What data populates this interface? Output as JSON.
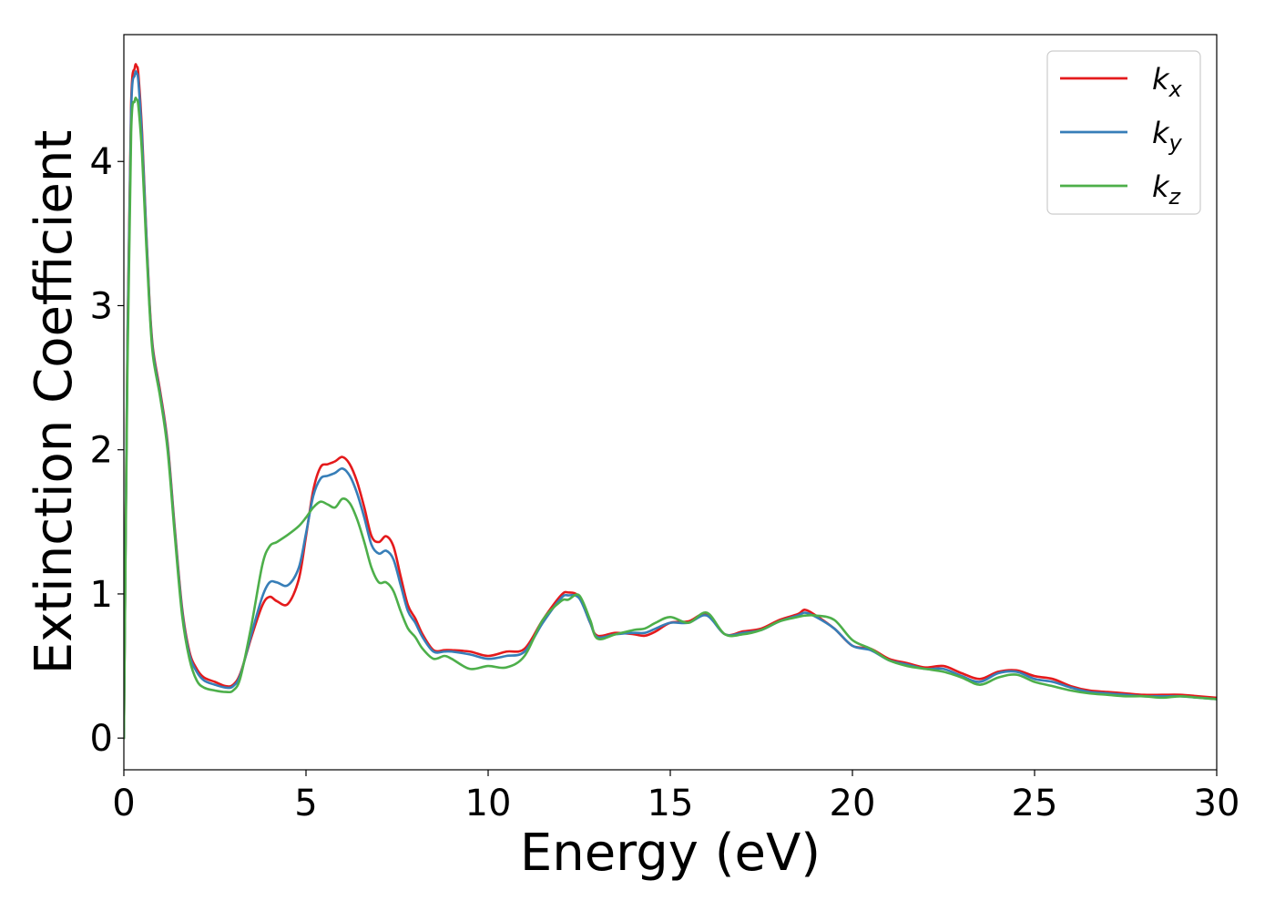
{
  "chart_data": {
    "type": "line",
    "title": "",
    "xlabel": "Energy (eV)",
    "ylabel": "Extinction Coefficient",
    "xlim": [
      0,
      30
    ],
    "ylim": [
      -0.22,
      4.88
    ],
    "xticks": [
      0,
      5,
      10,
      15,
      20,
      25,
      30
    ],
    "yticks": [
      0,
      1,
      2,
      3,
      4
    ],
    "grid": false,
    "legend_position": "top-right",
    "series": [
      {
        "name": "x",
        "legend_base": "k",
        "legend_sub": "x",
        "color": "#e41a1c",
        "x": [
          0,
          0.1,
          0.2,
          0.3,
          0.35,
          0.4,
          0.5,
          0.6,
          0.7,
          0.8,
          1.0,
          1.2,
          1.4,
          1.6,
          1.8,
          2.0,
          2.2,
          2.5,
          2.8,
          3.0,
          3.2,
          3.5,
          3.8,
          4.0,
          4.2,
          4.5,
          4.8,
          5.0,
          5.2,
          5.4,
          5.6,
          5.8,
          6.0,
          6.2,
          6.4,
          6.6,
          6.8,
          7.0,
          7.2,
          7.4,
          7.6,
          7.8,
          8.0,
          8.2,
          8.5,
          8.8,
          9.0,
          9.5,
          10.0,
          10.5,
          11.0,
          11.5,
          12.0,
          12.2,
          12.5,
          12.8,
          13.0,
          13.5,
          14.0,
          14.3,
          14.6,
          15.0,
          15.5,
          16.0,
          16.5,
          17.0,
          17.5,
          18.0,
          18.5,
          18.7,
          19.0,
          19.5,
          20.0,
          20.5,
          21.0,
          21.5,
          22.0,
          22.5,
          23.0,
          23.5,
          24.0,
          24.5,
          25.0,
          25.5,
          26.0,
          26.5,
          27.0,
          27.5,
          28.0,
          28.5,
          29.0,
          29.5,
          30.0
        ],
        "y": [
          0.0,
          2.8,
          4.4,
          4.65,
          4.66,
          4.6,
          4.2,
          3.6,
          3.05,
          2.7,
          2.4,
          2.05,
          1.45,
          0.9,
          0.6,
          0.48,
          0.42,
          0.39,
          0.36,
          0.37,
          0.45,
          0.7,
          0.92,
          0.98,
          0.95,
          0.93,
          1.1,
          1.4,
          1.72,
          1.88,
          1.9,
          1.92,
          1.95,
          1.9,
          1.78,
          1.6,
          1.4,
          1.36,
          1.4,
          1.33,
          1.12,
          0.92,
          0.83,
          0.72,
          0.61,
          0.61,
          0.61,
          0.6,
          0.57,
          0.6,
          0.62,
          0.82,
          0.99,
          1.01,
          0.98,
          0.8,
          0.71,
          0.73,
          0.72,
          0.71,
          0.74,
          0.8,
          0.81,
          0.86,
          0.72,
          0.74,
          0.76,
          0.82,
          0.86,
          0.89,
          0.85,
          0.76,
          0.64,
          0.62,
          0.55,
          0.52,
          0.49,
          0.5,
          0.45,
          0.41,
          0.46,
          0.47,
          0.43,
          0.41,
          0.36,
          0.33,
          0.32,
          0.31,
          0.3,
          0.3,
          0.3,
          0.29,
          0.28
        ]
      },
      {
        "name": "y",
        "legend_base": "k",
        "legend_sub": "y",
        "color": "#377eb8",
        "x": [
          0,
          0.1,
          0.2,
          0.3,
          0.35,
          0.4,
          0.5,
          0.6,
          0.7,
          0.8,
          1.0,
          1.2,
          1.4,
          1.6,
          1.8,
          2.0,
          2.2,
          2.5,
          2.8,
          3.0,
          3.2,
          3.5,
          3.8,
          4.0,
          4.2,
          4.5,
          4.8,
          5.0,
          5.2,
          5.4,
          5.6,
          5.8,
          6.0,
          6.2,
          6.4,
          6.6,
          6.8,
          7.0,
          7.2,
          7.4,
          7.6,
          7.8,
          8.0,
          8.2,
          8.5,
          8.8,
          9.0,
          9.5,
          10.0,
          10.5,
          11.0,
          11.5,
          12.0,
          12.2,
          12.5,
          12.8,
          13.0,
          13.5,
          14.0,
          14.3,
          14.6,
          15.0,
          15.5,
          16.0,
          16.5,
          17.0,
          17.5,
          18.0,
          18.5,
          18.7,
          19.0,
          19.5,
          20.0,
          20.5,
          21.0,
          21.5,
          22.0,
          22.5,
          23.0,
          23.5,
          24.0,
          24.5,
          25.0,
          25.5,
          26.0,
          26.5,
          27.0,
          27.5,
          28.0,
          28.5,
          29.0,
          29.5,
          30.0
        ],
        "y": [
          0.0,
          2.75,
          4.35,
          4.6,
          4.61,
          4.55,
          4.15,
          3.58,
          3.03,
          2.68,
          2.38,
          2.03,
          1.43,
          0.88,
          0.58,
          0.46,
          0.4,
          0.37,
          0.35,
          0.36,
          0.44,
          0.72,
          0.98,
          1.08,
          1.08,
          1.06,
          1.18,
          1.42,
          1.68,
          1.8,
          1.82,
          1.84,
          1.87,
          1.82,
          1.7,
          1.53,
          1.34,
          1.28,
          1.3,
          1.24,
          1.06,
          0.88,
          0.8,
          0.7,
          0.6,
          0.6,
          0.6,
          0.58,
          0.55,
          0.57,
          0.6,
          0.8,
          0.97,
          0.99,
          0.97,
          0.8,
          0.7,
          0.72,
          0.73,
          0.73,
          0.76,
          0.8,
          0.8,
          0.85,
          0.72,
          0.73,
          0.75,
          0.81,
          0.85,
          0.87,
          0.84,
          0.76,
          0.64,
          0.61,
          0.54,
          0.51,
          0.48,
          0.48,
          0.43,
          0.39,
          0.45,
          0.46,
          0.41,
          0.39,
          0.35,
          0.32,
          0.31,
          0.3,
          0.29,
          0.29,
          0.29,
          0.28,
          0.27
        ]
      },
      {
        "name": "z",
        "legend_base": "k",
        "legend_sub": "z",
        "color": "#4daf4a",
        "x": [
          0,
          0.1,
          0.2,
          0.3,
          0.35,
          0.4,
          0.5,
          0.6,
          0.7,
          0.8,
          1.0,
          1.2,
          1.4,
          1.6,
          1.8,
          2.0,
          2.2,
          2.5,
          2.8,
          3.0,
          3.2,
          3.5,
          3.8,
          4.0,
          4.2,
          4.5,
          4.8,
          5.0,
          5.2,
          5.4,
          5.6,
          5.8,
          6.0,
          6.2,
          6.4,
          6.6,
          6.8,
          7.0,
          7.2,
          7.4,
          7.6,
          7.8,
          8.0,
          8.2,
          8.5,
          8.8,
          9.0,
          9.5,
          10.0,
          10.5,
          11.0,
          11.5,
          12.0,
          12.2,
          12.5,
          12.8,
          13.0,
          13.5,
          14.0,
          14.3,
          14.6,
          15.0,
          15.5,
          16.0,
          16.5,
          17.0,
          17.5,
          18.0,
          18.5,
          18.7,
          19.0,
          19.5,
          20.0,
          20.5,
          21.0,
          21.5,
          22.0,
          22.5,
          23.0,
          23.5,
          24.0,
          24.5,
          25.0,
          25.5,
          26.0,
          26.5,
          27.0,
          27.5,
          28.0,
          28.5,
          29.0,
          29.5,
          30.0
        ],
        "y": [
          0.0,
          2.6,
          4.2,
          4.42,
          4.43,
          4.38,
          4.05,
          3.5,
          3.0,
          2.65,
          2.36,
          2.0,
          1.4,
          0.85,
          0.55,
          0.4,
          0.35,
          0.33,
          0.32,
          0.33,
          0.42,
          0.78,
          1.2,
          1.33,
          1.36,
          1.41,
          1.47,
          1.53,
          1.6,
          1.64,
          1.62,
          1.6,
          1.66,
          1.63,
          1.52,
          1.36,
          1.18,
          1.08,
          1.08,
          1.02,
          0.88,
          0.76,
          0.7,
          0.62,
          0.55,
          0.57,
          0.55,
          0.48,
          0.5,
          0.49,
          0.57,
          0.82,
          0.95,
          0.96,
          0.99,
          0.82,
          0.69,
          0.72,
          0.75,
          0.76,
          0.8,
          0.84,
          0.8,
          0.87,
          0.72,
          0.72,
          0.75,
          0.81,
          0.84,
          0.85,
          0.85,
          0.82,
          0.68,
          0.62,
          0.54,
          0.5,
          0.48,
          0.46,
          0.42,
          0.37,
          0.42,
          0.44,
          0.39,
          0.36,
          0.33,
          0.31,
          0.3,
          0.29,
          0.29,
          0.28,
          0.29,
          0.28,
          0.27
        ]
      }
    ]
  }
}
